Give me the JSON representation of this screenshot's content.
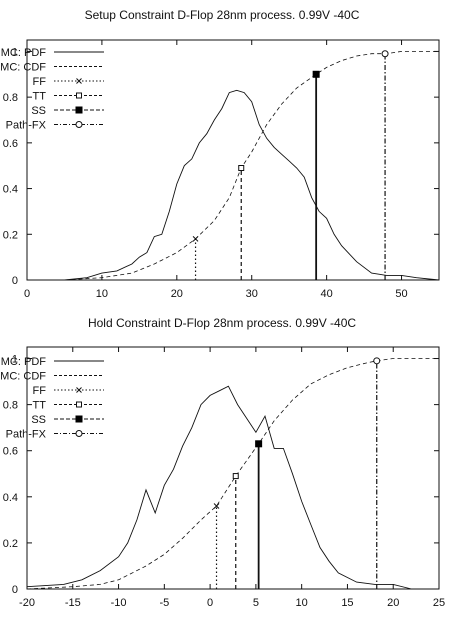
{
  "chart_data": [
    {
      "type": "line",
      "title": "Setup Constraint D-Flop 28nm process. 0.99V -40C",
      "xlabel": "",
      "ylabel": "",
      "xlim": [
        0,
        55
      ],
      "ylim": [
        0,
        1.05
      ],
      "xticks": [
        0,
        10,
        20,
        30,
        40,
        50
      ],
      "yticks": [
        0,
        0.2,
        0.4,
        0.6,
        0.8,
        1
      ],
      "ytick_labels": [
        "0",
        "0.2",
        "0.4",
        "0.6",
        "0.8",
        "1"
      ],
      "grid": false,
      "legend_position": "top-left",
      "series": [
        {
          "name": "MC: PDF",
          "style": "solid",
          "x": [
            5,
            8,
            10,
            12,
            14,
            15,
            16,
            17,
            18,
            19,
            20,
            21,
            22,
            23,
            24,
            25,
            26,
            27,
            28,
            29,
            30,
            31,
            32,
            33,
            34,
            35,
            36,
            37,
            38,
            39,
            40,
            41,
            42,
            44,
            46,
            48,
            50,
            52,
            55
          ],
          "y": [
            0.0,
            0.01,
            0.03,
            0.04,
            0.07,
            0.1,
            0.12,
            0.19,
            0.2,
            0.3,
            0.42,
            0.5,
            0.53,
            0.6,
            0.64,
            0.7,
            0.75,
            0.82,
            0.83,
            0.82,
            0.78,
            0.68,
            0.62,
            0.58,
            0.55,
            0.52,
            0.49,
            0.45,
            0.36,
            0.3,
            0.27,
            0.2,
            0.15,
            0.08,
            0.03,
            0.02,
            0.02,
            0.01,
            0.0
          ]
        },
        {
          "name": "MC: CDF",
          "style": "dashed",
          "x": [
            5,
            10,
            14,
            17,
            20,
            22.5,
            25,
            27,
            28.6,
            30,
            32,
            34,
            36,
            38.6,
            40,
            42,
            44,
            46,
            48,
            50,
            52,
            55
          ],
          "y": [
            0.0,
            0.01,
            0.03,
            0.07,
            0.12,
            0.18,
            0.26,
            0.36,
            0.49,
            0.56,
            0.68,
            0.77,
            0.84,
            0.9,
            0.93,
            0.96,
            0.98,
            0.99,
            0.99,
            1.0,
            1.0,
            1.0
          ]
        }
      ],
      "markers": [
        {
          "name": "FF",
          "x": 22.5,
          "y": 0.18,
          "marker": "x",
          "line": "dotted"
        },
        {
          "name": "TT",
          "x": 28.6,
          "y": 0.49,
          "marker": "open-square",
          "line": "dashed"
        },
        {
          "name": "SS",
          "x": 38.6,
          "y": 0.9,
          "marker": "filled-square",
          "line": "solid"
        },
        {
          "name": "Path-FX",
          "x": 47.8,
          "y": 0.99,
          "marker": "open-circle",
          "line": "dash-dot"
        }
      ]
    },
    {
      "type": "line",
      "title": "Hold Constraint D-Flop 28nm process. 0.99V -40C",
      "xlabel": "",
      "ylabel": "",
      "xlim": [
        -20,
        25
      ],
      "ylim": [
        0,
        1.05
      ],
      "xticks": [
        -20,
        -15,
        -10,
        -5,
        0,
        5,
        10,
        15,
        20,
        25
      ],
      "yticks": [
        0,
        0.2,
        0.4,
        0.6,
        0.8,
        1
      ],
      "ytick_labels": [
        "0",
        "0.2",
        "0.4",
        "0.6",
        "0.8",
        "1"
      ],
      "grid": false,
      "legend_position": "top-left",
      "series": [
        {
          "name": "MC: PDF",
          "style": "solid",
          "x": [
            -20,
            -16,
            -14,
            -12,
            -10,
            -9,
            -8,
            -7,
            -6,
            -5,
            -4,
            -3,
            -2,
            -1,
            0,
            1,
            2,
            3,
            4,
            5,
            6,
            7,
            8,
            9,
            10,
            11,
            12,
            13,
            14,
            16,
            18,
            20,
            22
          ],
          "y": [
            0.01,
            0.02,
            0.04,
            0.08,
            0.14,
            0.2,
            0.3,
            0.43,
            0.33,
            0.45,
            0.52,
            0.62,
            0.7,
            0.8,
            0.84,
            0.86,
            0.88,
            0.8,
            0.74,
            0.68,
            0.75,
            0.61,
            0.61,
            0.5,
            0.38,
            0.28,
            0.18,
            0.12,
            0.07,
            0.03,
            0.02,
            0.02,
            0.0
          ]
        },
        {
          "name": "MC: CDF",
          "style": "dashed",
          "x": [
            -20,
            -15,
            -12,
            -10,
            -7,
            -5,
            -3,
            -1,
            0.7,
            2.8,
            5.3,
            7,
            9,
            11,
            13,
            15,
            17,
            18.2,
            20,
            22,
            25
          ],
          "y": [
            0.0,
            0.01,
            0.02,
            0.04,
            0.1,
            0.15,
            0.22,
            0.3,
            0.36,
            0.49,
            0.63,
            0.73,
            0.82,
            0.89,
            0.93,
            0.96,
            0.98,
            0.99,
            1.0,
            1.0,
            1.0
          ]
        }
      ],
      "markers": [
        {
          "name": "FF",
          "x": 0.7,
          "y": 0.36,
          "marker": "x",
          "line": "dotted"
        },
        {
          "name": "TT",
          "x": 2.8,
          "y": 0.49,
          "marker": "open-square",
          "line": "dashed"
        },
        {
          "name": "SS",
          "x": 5.3,
          "y": 0.63,
          "marker": "filled-square",
          "line": "solid"
        },
        {
          "name": "Path-FX",
          "x": 18.2,
          "y": 0.99,
          "marker": "open-circle",
          "line": "dash-dot"
        }
      ]
    }
  ]
}
